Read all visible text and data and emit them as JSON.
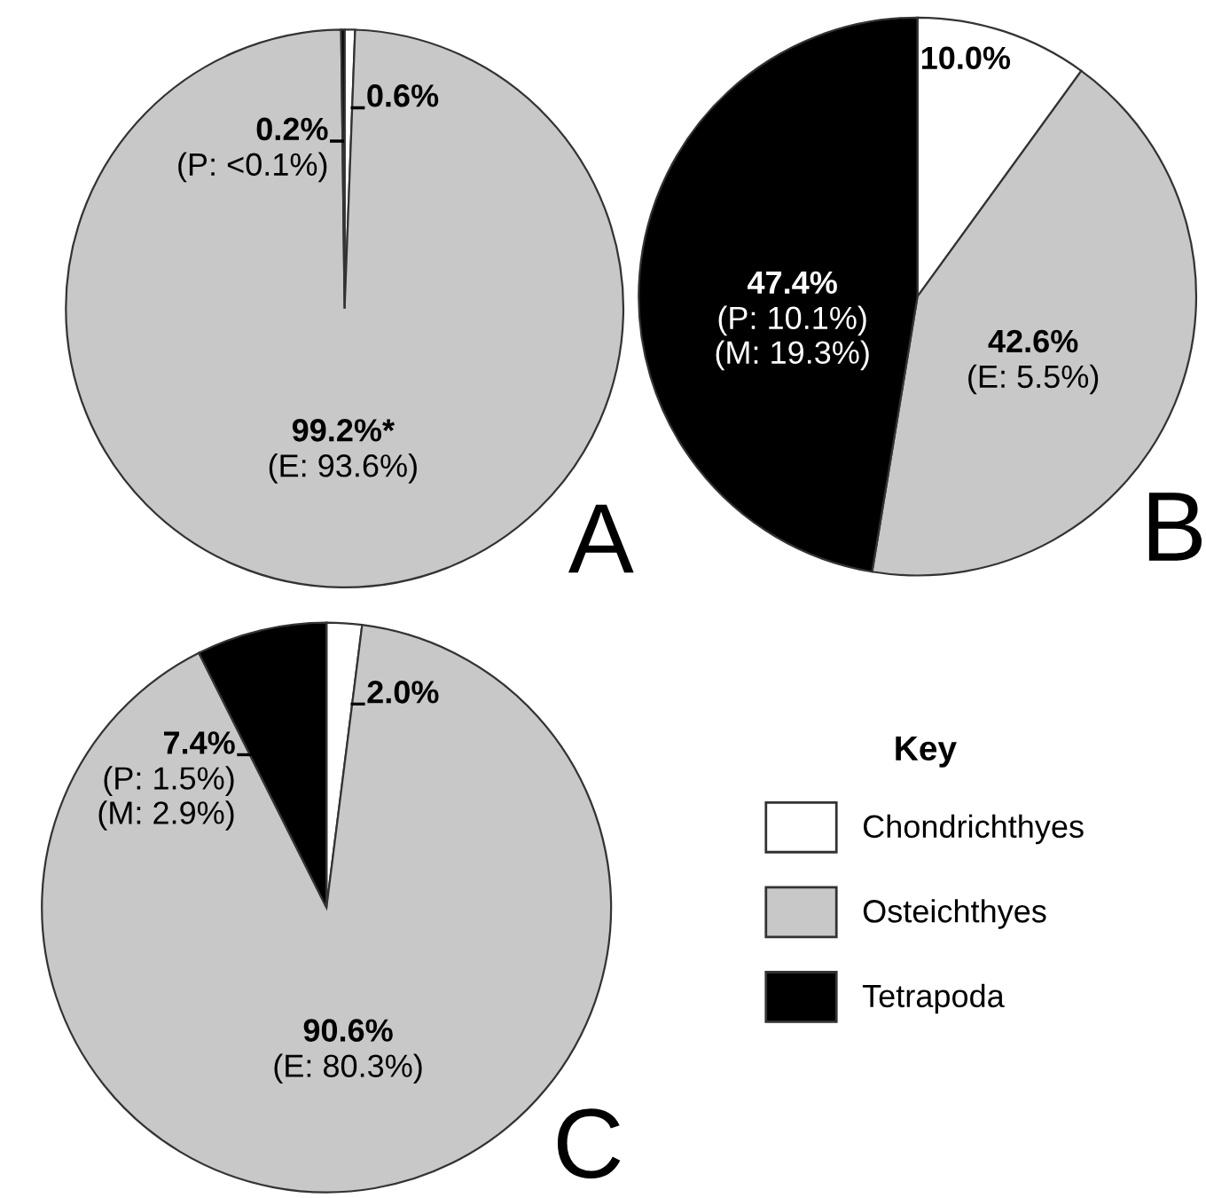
{
  "chart_data": [
    {
      "type": "pie",
      "title": "A",
      "categories": [
        null,
        null,
        null
      ],
      "values": [
        0.6,
        99.2,
        0.2
      ],
      "colors": [
        "#ffffff",
        "#c8c8c8",
        "#000000"
      ],
      "value_labels": [
        "0.6%",
        "99.2%*\n(E: 93.6%)",
        "0.2%\n(P: <0.1%)"
      ],
      "legend": false
    },
    {
      "type": "pie",
      "title": "B",
      "categories": [
        null,
        null,
        null
      ],
      "values": [
        10.0,
        42.6,
        47.4
      ],
      "colors": [
        "#ffffff",
        "#c8c8c8",
        "#000000"
      ],
      "value_labels": [
        "10.0%",
        "42.6%\n(E: 5.5%)",
        "47.4%\n(P: 10.1%)\n(M: 19.3%)"
      ],
      "legend": false
    },
    {
      "type": "pie",
      "title": "C",
      "categories": [
        "Chondrichthyes",
        "Osteichthyes",
        "Tetrapoda"
      ],
      "values": [
        2.0,
        90.6,
        7.4
      ],
      "colors": [
        "#ffffff",
        "#c8c8c8",
        "#000000"
      ],
      "value_labels": [
        "2.0%",
        "90.6%\n(E: 80.3%)",
        "7.4%\n(P: 1.5%)\n(M: 2.9%)"
      ],
      "legend": "right",
      "legend_title": "Key"
    }
  ]
}
